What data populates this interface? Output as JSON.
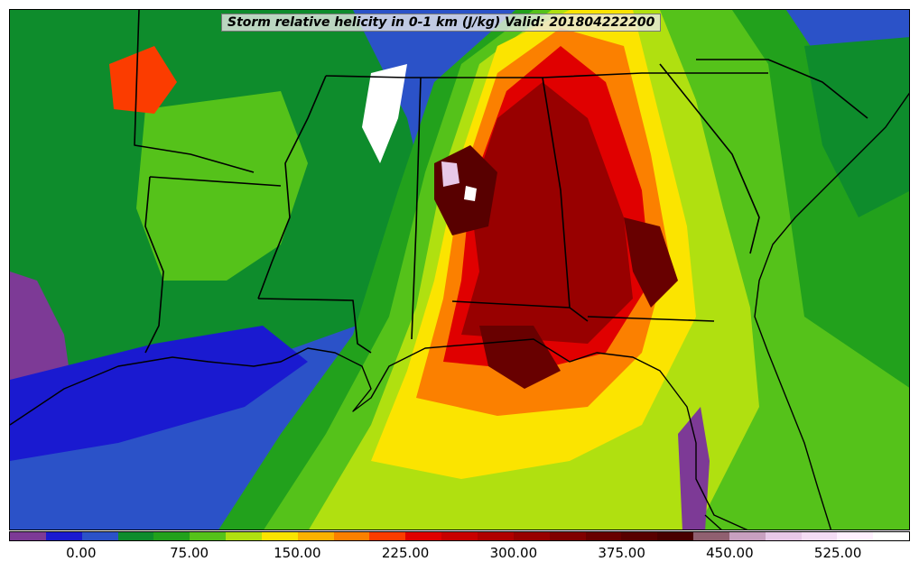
{
  "title": "Storm relative helicity in 0-1 km (J/kg) Valid: 201804222200",
  "colorbar": {
    "ticks": [
      "0.00",
      "75.00",
      "150.00",
      "225.00",
      "300.00",
      "375.00",
      "450.00",
      "525.00"
    ],
    "tick_values": [
      0,
      75,
      150,
      225,
      300,
      375,
      450,
      525
    ],
    "range": [
      -50,
      575
    ],
    "colors": [
      "#7d3a96",
      "#1a1ad0",
      "#2b52c8",
      "#0e8c2c",
      "#22a11c",
      "#55c21a",
      "#b0e010",
      "#fbe400",
      "#fbb200",
      "#fb8000",
      "#fb3c00",
      "#e00000",
      "#c80000",
      "#b00000",
      "#980000",
      "#800000",
      "#680000",
      "#580000",
      "#480000",
      "#906070",
      "#c8a0c0",
      "#e8c8e8",
      "#f4dcf4",
      "#fff0ff",
      "#ffffff"
    ]
  },
  "map": {
    "ocean_color": "#2b52c8",
    "field_colors": {
      "very_low": "#7d3a96",
      "low": "#1a1ad0",
      "low_mid": "#0e8c2c",
      "mid": "#55c21a",
      "mid_high": "#b0e010",
      "high": "#fbe400",
      "higher": "#fb8000",
      "very_high": "#e00000",
      "extreme": "#980000",
      "max": "#580000",
      "white": "#ffffff"
    }
  }
}
